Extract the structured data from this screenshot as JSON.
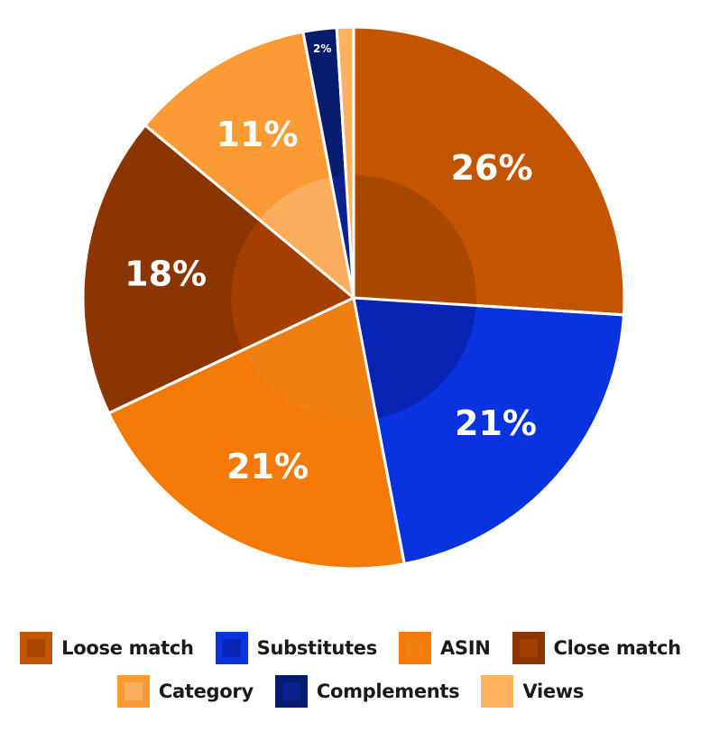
{
  "chart_data": {
    "type": "pie",
    "title": "",
    "slices": [
      {
        "name": "Loose match",
        "value": 26,
        "label": "26%",
        "color": "#c45500",
        "inner": "#a84800"
      },
      {
        "name": "Substitutes",
        "value": 21,
        "label": "21%",
        "color": "#0a33e0",
        "inner": "#0724b5"
      },
      {
        "name": "ASIN",
        "value": 21,
        "label": "21%",
        "color": "#f47a08",
        "inner": "#ee7f10"
      },
      {
        "name": "Close match",
        "value": 18,
        "label": "18%",
        "color": "#8a3502",
        "inner": "#a33f00"
      },
      {
        "name": "Category",
        "value": 11,
        "label": "11%",
        "color": "#f99a33",
        "inner": "#fbad5e"
      },
      {
        "name": "Complements",
        "value": 2,
        "label": "2%",
        "color": "#081c6e",
        "inner": "#0a2290"
      },
      {
        "name": "Views",
        "value": 1,
        "label": "1%",
        "color": "#fcb15e",
        "inner": "#fcb15e",
        "label_color": "#f47a08"
      }
    ],
    "legend": {
      "placement": "bottom",
      "rows": [
        [
          "Loose match",
          "Substitutes",
          "ASIN",
          "Close match"
        ],
        [
          "Category",
          "Complements",
          "Views"
        ]
      ]
    }
  }
}
